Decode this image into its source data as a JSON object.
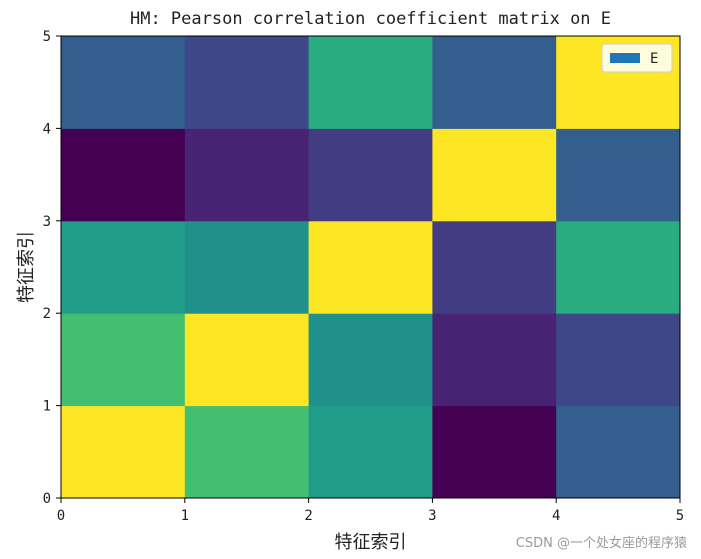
{
  "chart_data": {
    "type": "heatmap",
    "title": "HM: Pearson correlation coefficient matrix on E",
    "xlabel": "特征索引",
    "ylabel": "特征索引",
    "xlim": [
      0,
      5
    ],
    "ylim": [
      0,
      5
    ],
    "x_ticks": [
      "0",
      "1",
      "2",
      "3",
      "4",
      "5"
    ],
    "y_ticks": [
      "0",
      "1",
      "2",
      "3",
      "4",
      "5"
    ],
    "colormap": "viridis",
    "value_range": [
      0,
      1
    ],
    "grid": false,
    "legend": {
      "entries": [
        "E"
      ],
      "placement": "top-right",
      "swatch_color": "#1f77b4"
    },
    "rows_bottom_to_top": [
      [
        1.0,
        0.7,
        0.55,
        0.0,
        0.3
      ],
      [
        0.7,
        1.0,
        0.5,
        0.1,
        0.22
      ],
      [
        0.55,
        0.5,
        1.0,
        0.18,
        0.62
      ],
      [
        0.0,
        0.1,
        0.18,
        1.0,
        0.3
      ],
      [
        0.3,
        0.22,
        0.62,
        0.3,
        1.0
      ]
    ]
  },
  "watermark": "CSDN @一个处女座的程序猿"
}
